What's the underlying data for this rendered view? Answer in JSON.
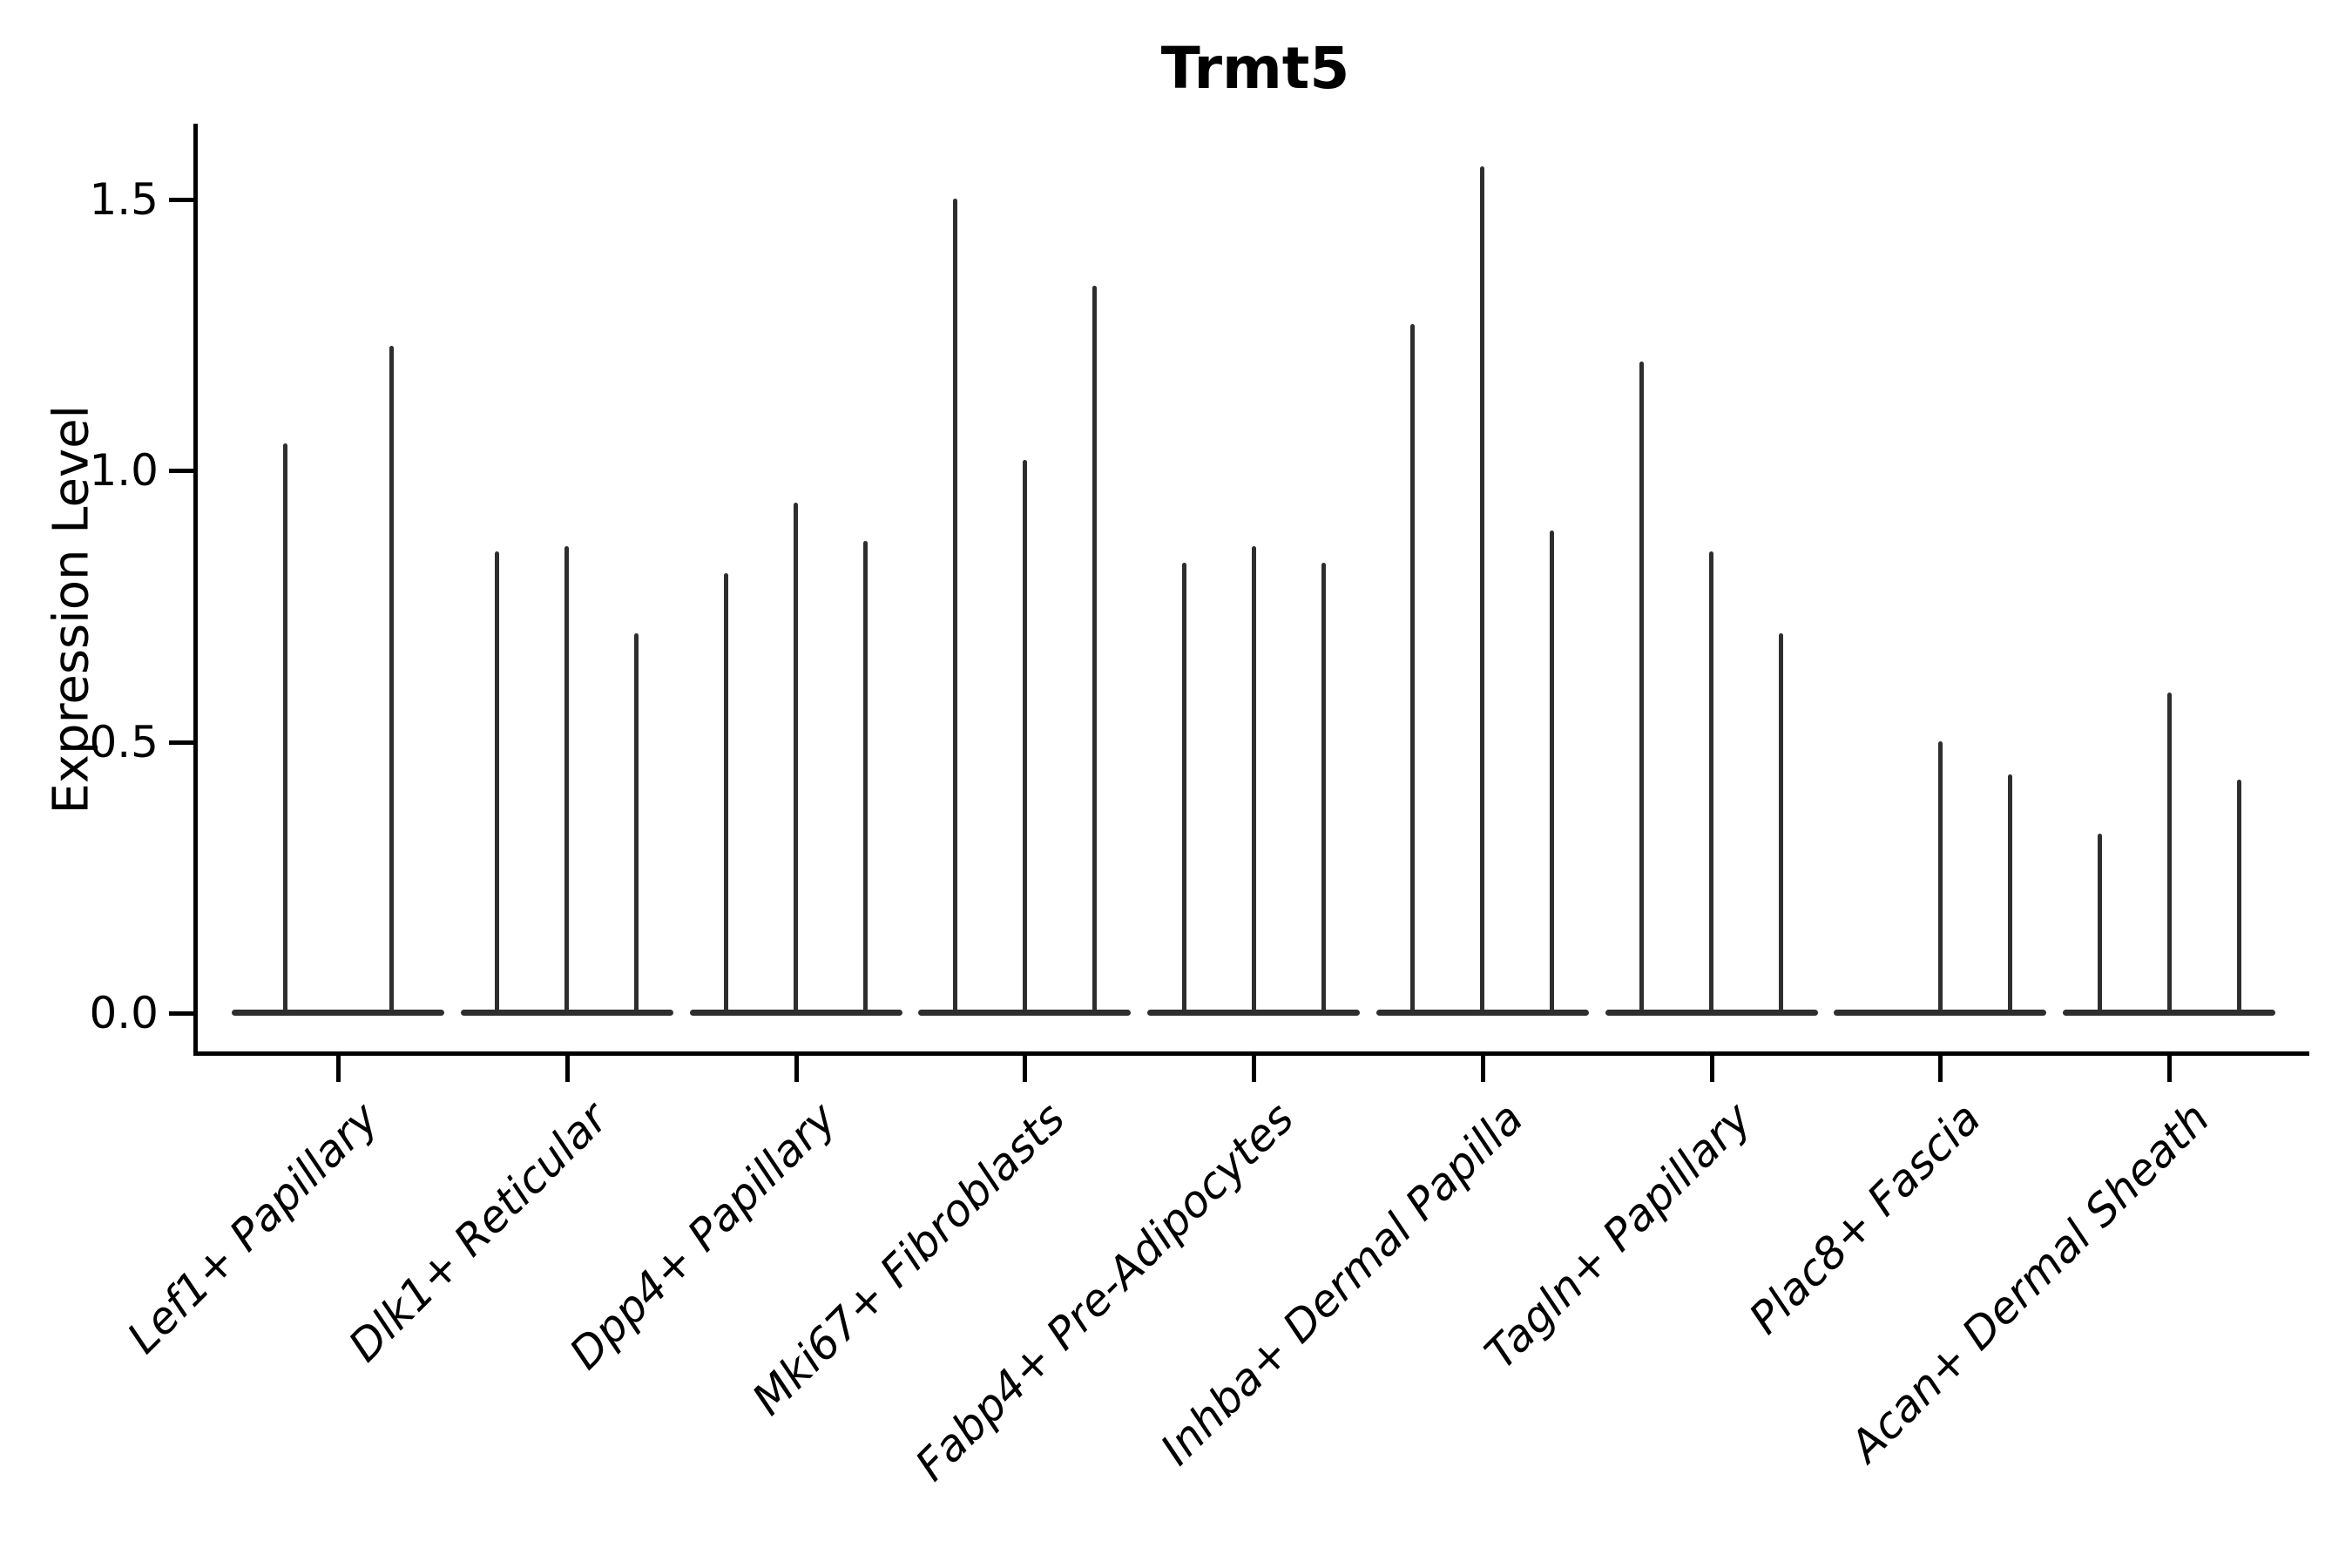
{
  "figure": {
    "title": "Trmt5",
    "ylabel": "Expression Level",
    "colors": {
      "axis": "#000000",
      "violin": "#2e2e2e",
      "background": "#ffffff"
    }
  },
  "chart_data": {
    "type": "violin",
    "title": "Trmt5",
    "xlabel": "",
    "ylabel": "Expression Level",
    "ylim": [
      -0.08,
      1.64
    ],
    "grid": false,
    "legend": "none",
    "yticks": [
      {
        "label": "0.0",
        "value": 0.0
      },
      {
        "label": "0.5",
        "value": 0.5
      },
      {
        "label": "1.0",
        "value": 1.0
      },
      {
        "label": "1.5",
        "value": 1.5
      }
    ],
    "note": "Each category shows thin spike-like violins (near-zero width bodies at 0 with tall max-expression spikes)",
    "categories": [
      {
        "label": "Lef1+ Papillary",
        "expression_peaks": [
          1.05,
          1.23
        ]
      },
      {
        "label": "Dlk1+ Reticular",
        "expression_peaks": [
          0.85,
          0.86,
          0.7
        ]
      },
      {
        "label": "Dpp4+ Papillary",
        "expression_peaks": [
          0.81,
          0.94,
          0.87
        ]
      },
      {
        "label": "Mki67+ Fibroblasts",
        "expression_peaks": [
          1.5,
          1.02,
          1.34
        ]
      },
      {
        "label": "Fabp4+ Pre-Adipocytes",
        "expression_peaks": [
          0.83,
          0.86,
          0.83
        ]
      },
      {
        "label": "Inhba+ Dermal Papilla",
        "expression_peaks": [
          1.27,
          1.56,
          0.89
        ]
      },
      {
        "label": "Tagln+ Papillary",
        "expression_peaks": [
          1.2,
          0.85,
          0.7
        ]
      },
      {
        "label": "Plac8+ Fascia",
        "expression_peaks": [
          0.0,
          0.5,
          0.44
        ]
      },
      {
        "label": "Acan+ Dermal Sheath",
        "expression_peaks": [
          0.33,
          0.59,
          0.43
        ]
      }
    ]
  }
}
